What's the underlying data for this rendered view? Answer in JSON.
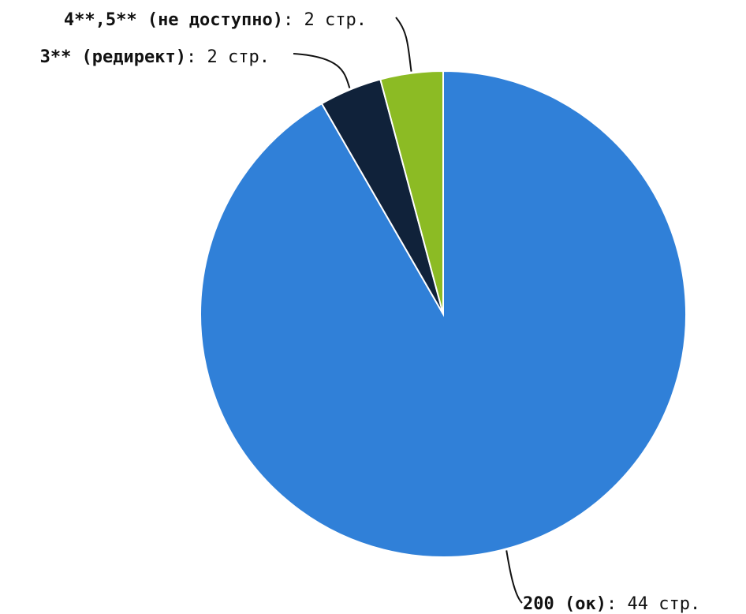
{
  "chart_data": {
    "type": "pie",
    "slices": [
      {
        "label": "200 (ок)",
        "value": 44,
        "value_text": "44 стр.",
        "color": "#3080D8"
      },
      {
        "label": "3** (редирект)",
        "value": 2,
        "value_text": "2 стр.",
        "color": "#10223A"
      },
      {
        "label": "4**,5** (не доступно)",
        "value": 2,
        "value_text": "2 стр.",
        "color": "#8CBB24"
      }
    ],
    "start_angle": "12 o'clock",
    "direction": "clockwise",
    "label_separator": ": "
  }
}
